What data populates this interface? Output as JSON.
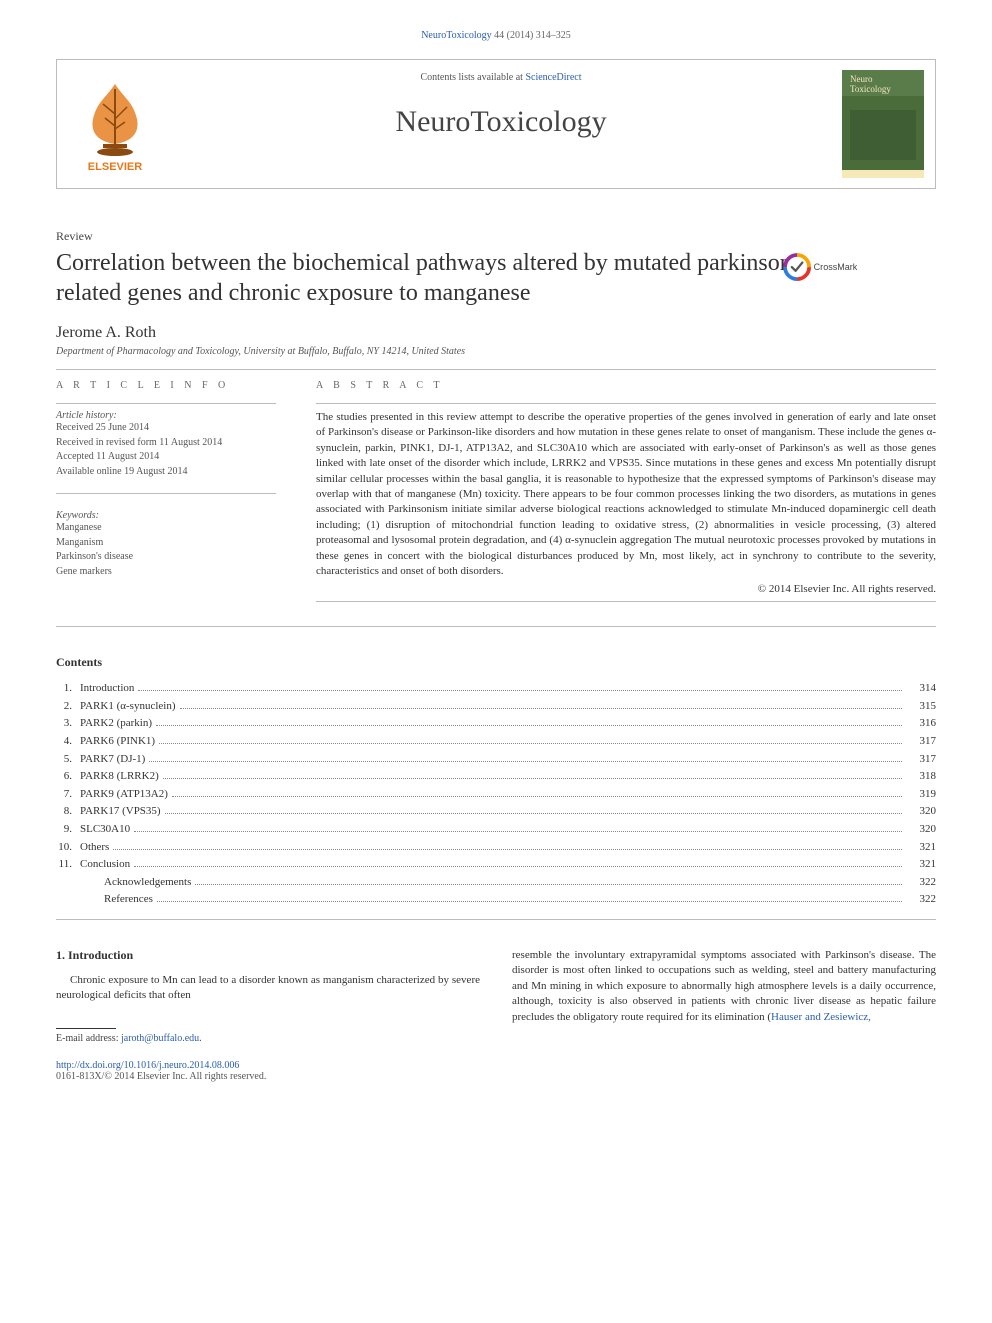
{
  "citation": {
    "journal": "NeuroToxicology",
    "vol_pages": "44 (2014) 314–325"
  },
  "header": {
    "contents_prefix": "Contents lists available at ",
    "contents_link": "ScienceDirect",
    "journal_name": "NeuroToxicology",
    "cover": {
      "bg": "#4a6b3a",
      "title_top": "Neuro",
      "title_bottom": "Toxicology",
      "text_color": "#f5e9b8"
    },
    "elsevier": {
      "tree_fill": "#e67817",
      "wordmark": "ELSEVIER",
      "wordmark_color": "#e67817"
    }
  },
  "labels": {
    "review": "Review",
    "article_info": "A R T I C L E   I N F O",
    "abstract": "A B S T R A C T",
    "history": "Article history:",
    "keywords": "Keywords:",
    "contents": "Contents"
  },
  "title": "Correlation between the biochemical pathways altered by mutated parkinson-related genes and chronic exposure to manganese",
  "crossmark": {
    "label": "CrossMark",
    "ring_colors": [
      "#e6332a",
      "#f7a600",
      "#2a7de1",
      "#9b2e9b"
    ]
  },
  "author": "Jerome A. Roth",
  "affiliation": "Department of Pharmacology and Toxicology, University at Buffalo, Buffalo, NY 14214, United States",
  "history": [
    "Received 25 June 2014",
    "Received in revised form 11 August 2014",
    "Accepted 11 August 2014",
    "Available online 19 August 2014"
  ],
  "keywords": [
    "Manganese",
    "Manganism",
    "Parkinson's disease",
    "Gene markers"
  ],
  "abstract": "The studies presented in this review attempt to describe the operative properties of the genes involved in generation of early and late onset of Parkinson's disease or Parkinson-like disorders and how mutation in these genes relate to onset of manganism. These include the genes α-synuclein, parkin, PINK1, DJ-1, ATP13A2, and SLC30A10 which are associated with early-onset of Parkinson's as well as those genes linked with late onset of the disorder which include, LRRK2 and VPS35. Since mutations in these genes and excess Mn potentially disrupt similar cellular processes within the basal ganglia, it is reasonable to hypothesize that the expressed symptoms of Parkinson's disease may overlap with that of manganese (Mn) toxicity. There appears to be four common processes linking the two disorders, as mutations in genes associated with Parkinsonism initiate similar adverse biological reactions acknowledged to stimulate Mn-induced dopaminergic cell death including; (1) disruption of mitochondrial function leading to oxidative stress, (2) abnormalities in vesicle processing, (3) altered proteasomal and lysosomal protein degradation, and (4) α-synuclein aggregation The mutual neurotoxic processes provoked by mutations in these genes in concert with the biological disturbances produced by Mn, most likely, act in synchrony to contribute to the severity, characteristics and onset of both disorders.",
  "copyright": "© 2014 Elsevier Inc. All rights reserved.",
  "toc": [
    {
      "n": "1.",
      "t": "Introduction",
      "p": "314"
    },
    {
      "n": "2.",
      "t": "PARK1 (α-synuclein)",
      "p": "315"
    },
    {
      "n": "3.",
      "t": "PARK2 (parkin)",
      "p": "316"
    },
    {
      "n": "4.",
      "t": "PARK6 (PINK1)",
      "p": "317"
    },
    {
      "n": "5.",
      "t": "PARK7 (DJ-1)",
      "p": "317"
    },
    {
      "n": "6.",
      "t": "PARK8 (LRRK2)",
      "p": "318"
    },
    {
      "n": "7.",
      "t": "PARK9 (ATP13A2)",
      "p": "319"
    },
    {
      "n": "8.",
      "t": "PARK17 (VPS35)",
      "p": "320"
    },
    {
      "n": "9.",
      "t": "SLC30A10",
      "p": "320"
    },
    {
      "n": "10.",
      "t": "Others",
      "p": "321"
    },
    {
      "n": "11.",
      "t": "Conclusion",
      "p": "321"
    },
    {
      "n": "",
      "t": "Acknowledgements",
      "p": "322",
      "indent": true
    },
    {
      "n": "",
      "t": "References",
      "p": "322",
      "indent": true
    }
  ],
  "intro": {
    "heading": "1. Introduction",
    "left": "Chronic exposure to Mn can lead to a disorder known as manganism characterized by severe neurological deficits that often",
    "right": "resemble the involuntary extrapyramidal symptoms associated with Parkinson's disease. The disorder is most often linked to occupations such as welding, steel and battery manufacturing and Mn mining in which exposure to abnormally high atmosphere levels is a daily occurrence, although, toxicity is also observed in patients with chronic liver disease as hepatic failure precludes the obligatory route required for its elimination (",
    "right_link": "Hauser and Zesiewicz,"
  },
  "footnote": {
    "label": "E-mail address: ",
    "email": "jaroth@buffalo.edu"
  },
  "doi": {
    "url": "http://dx.doi.org/10.1016/j.neuro.2014.08.006",
    "issn": "0161-813X/© 2014 Elsevier Inc. All rights reserved."
  },
  "colors": {
    "link": "#2a5db0",
    "rule": "#bcbcbc",
    "text": "#333333"
  }
}
